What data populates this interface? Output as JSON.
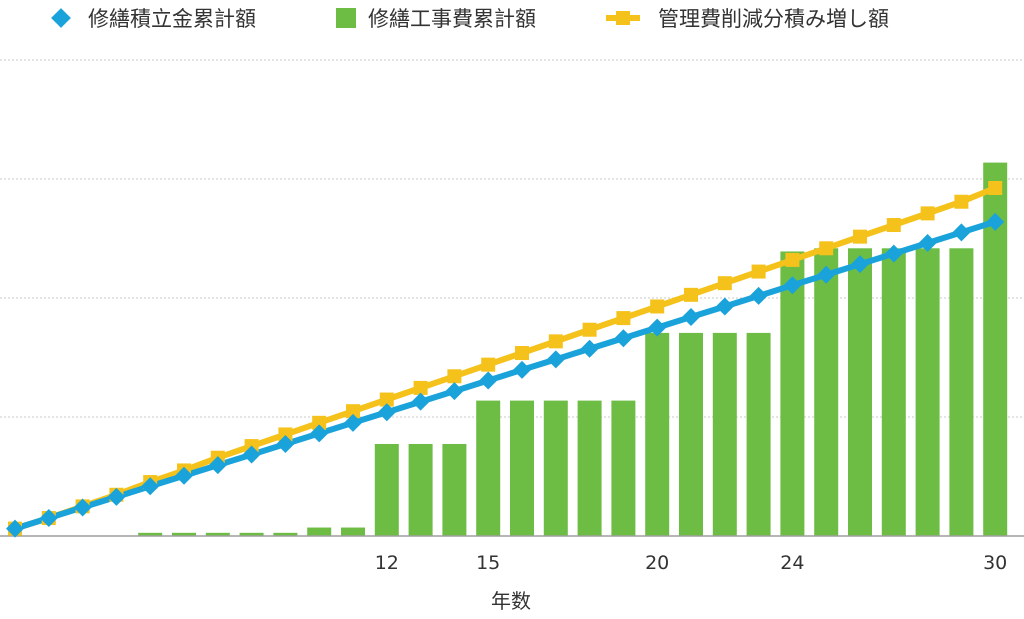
{
  "chart_data": {
    "type": "bar",
    "xlabel": "年数",
    "x": [
      1,
      2,
      3,
      4,
      5,
      6,
      7,
      8,
      9,
      10,
      11,
      12,
      13,
      14,
      15,
      16,
      17,
      18,
      19,
      20,
      21,
      22,
      23,
      24,
      25,
      26,
      27,
      28,
      29,
      30
    ],
    "xtick_labels": [
      "12",
      "15",
      "20",
      "24",
      "30"
    ],
    "xtick_positions": [
      12,
      15,
      20,
      24,
      30
    ],
    "ylim": [
      0,
      4.5
    ],
    "grid": true,
    "legend_position": "top",
    "series": [
      {
        "name": "修繕積立金累計額",
        "type": "line",
        "marker": "diamond",
        "color": "#1aa3db",
        "values": [
          0.07,
          0.17,
          0.27,
          0.37,
          0.47,
          0.57,
          0.67,
          0.77,
          0.87,
          0.97,
          1.07,
          1.17,
          1.27,
          1.37,
          1.47,
          1.57,
          1.67,
          1.77,
          1.87,
          1.97,
          2.07,
          2.17,
          2.27,
          2.37,
          2.47,
          2.57,
          2.67,
          2.77,
          2.87,
          2.97
        ]
      },
      {
        "name": "修繕工事費累計額",
        "type": "bar",
        "marker": "square",
        "color": "#6dbd45",
        "values": [
          0,
          0,
          0,
          0,
          0.03,
          0.03,
          0.03,
          0.03,
          0.03,
          0.08,
          0.08,
          0.87,
          0.87,
          0.87,
          1.28,
          1.28,
          1.28,
          1.28,
          1.28,
          1.92,
          1.92,
          1.92,
          1.92,
          2.69,
          2.72,
          2.72,
          2.72,
          2.72,
          2.72,
          3.53
        ]
      },
      {
        "name": "管理費削減分積み増し額",
        "type": "line",
        "marker": "square",
        "color": "#f5c21b",
        "values": [
          0.07,
          0.17,
          0.28,
          0.39,
          0.51,
          0.62,
          0.74,
          0.85,
          0.96,
          1.07,
          1.18,
          1.29,
          1.4,
          1.51,
          1.62,
          1.73,
          1.84,
          1.95,
          2.06,
          2.17,
          2.28,
          2.39,
          2.5,
          2.61,
          2.72,
          2.83,
          2.94,
          3.05,
          3.16,
          3.29
        ]
      }
    ]
  }
}
